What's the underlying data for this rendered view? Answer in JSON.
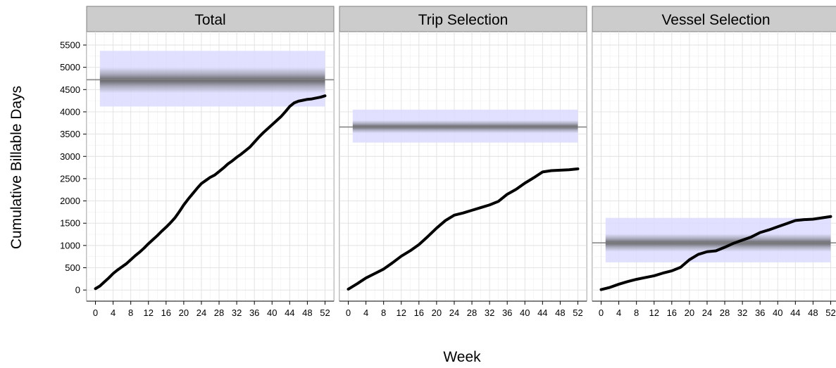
{
  "chart_data": {
    "type": "line",
    "ylabel": "Cumulative Billable Days",
    "xlabel": "Week",
    "x_ticks": [
      0,
      4,
      8,
      12,
      16,
      20,
      24,
      28,
      32,
      36,
      40,
      44,
      48,
      52
    ],
    "y_ticks": [
      0,
      500,
      1000,
      1500,
      2000,
      2500,
      3000,
      3500,
      4000,
      4500,
      5000,
      5500
    ],
    "xlim": [
      -2,
      54
    ],
    "ylim": [
      -250,
      5800
    ],
    "grid": true,
    "colors": {
      "line": "#000000",
      "target_line": "#7f7f7f",
      "band_outer": "#dcdcff",
      "band_core": "#505050"
    },
    "panels": [
      {
        "title": "Total",
        "target": 4720,
        "band": [
          4120,
          5370
        ],
        "core_band": [
          4420,
          5000
        ],
        "band_weeks": [
          1,
          52
        ],
        "series": {
          "x": [
            0,
            1,
            2,
            3,
            4,
            5,
            6,
            7,
            8,
            9,
            10,
            11,
            12,
            13,
            14,
            15,
            16,
            17,
            18,
            19,
            20,
            21,
            22,
            23,
            24,
            25,
            26,
            27,
            28,
            29,
            30,
            31,
            32,
            33,
            34,
            35,
            36,
            37,
            38,
            39,
            40,
            41,
            42,
            43,
            44,
            45,
            46,
            47,
            48,
            49,
            50,
            51,
            52
          ],
          "y": [
            30,
            90,
            180,
            270,
            370,
            450,
            520,
            590,
            680,
            770,
            850,
            940,
            1040,
            1130,
            1220,
            1320,
            1410,
            1510,
            1620,
            1760,
            1910,
            2040,
            2160,
            2280,
            2390,
            2460,
            2530,
            2580,
            2660,
            2740,
            2830,
            2900,
            2980,
            3050,
            3130,
            3210,
            3320,
            3430,
            3530,
            3620,
            3710,
            3800,
            3890,
            4000,
            4120,
            4200,
            4240,
            4260,
            4280,
            4290,
            4310,
            4330,
            4360
          ]
        }
      },
      {
        "title": "Trip Selection",
        "target": 3660,
        "band": [
          3310,
          4050
        ],
        "core_band": [
          3520,
          3810
        ],
        "band_weeks": [
          1,
          52
        ],
        "series": {
          "x": [
            0,
            2,
            4,
            6,
            8,
            10,
            12,
            14,
            16,
            18,
            20,
            22,
            24,
            26,
            28,
            30,
            32,
            34,
            36,
            38,
            40,
            42,
            44,
            46,
            48,
            50,
            52
          ],
          "y": [
            20,
            140,
            270,
            370,
            470,
            610,
            760,
            880,
            1020,
            1200,
            1390,
            1560,
            1680,
            1730,
            1790,
            1850,
            1910,
            1990,
            2150,
            2260,
            2400,
            2520,
            2650,
            2680,
            2690,
            2700,
            2720
          ]
        }
      },
      {
        "title": "Vessel Selection",
        "target": 1060,
        "band": [
          620,
          1620
        ],
        "core_band": [
          860,
          1260
        ],
        "band_weeks": [
          1,
          52
        ],
        "series": {
          "x": [
            0,
            2,
            4,
            6,
            8,
            10,
            12,
            14,
            16,
            18,
            20,
            22,
            24,
            26,
            28,
            30,
            32,
            34,
            36,
            38,
            40,
            42,
            44,
            46,
            48,
            50,
            52
          ],
          "y": [
            10,
            60,
            130,
            190,
            240,
            280,
            320,
            380,
            430,
            510,
            680,
            800,
            860,
            880,
            960,
            1050,
            1120,
            1190,
            1290,
            1350,
            1420,
            1490,
            1560,
            1580,
            1590,
            1620,
            1650
          ]
        }
      }
    ]
  }
}
